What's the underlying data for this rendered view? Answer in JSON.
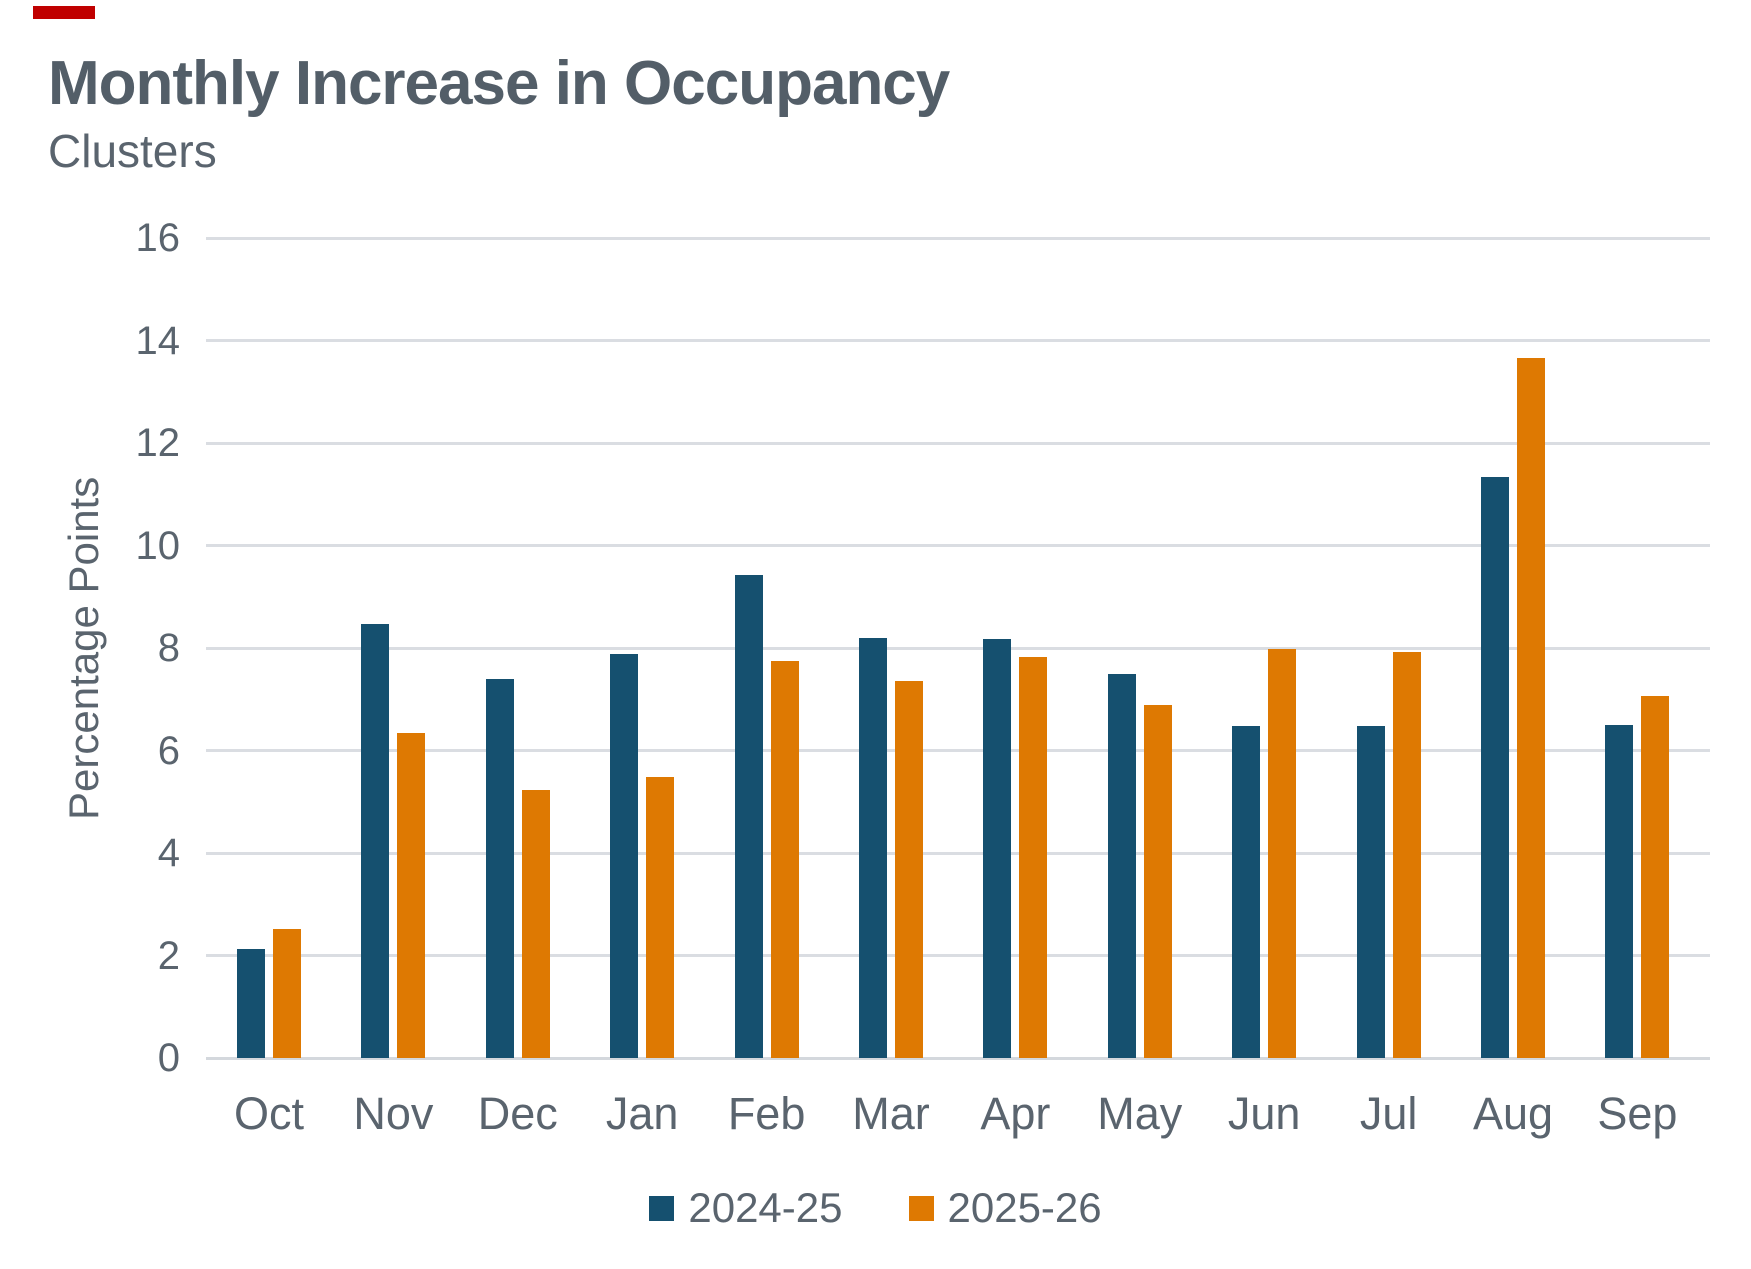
{
  "page": {
    "accent_color": "#C00000"
  },
  "chart_data": {
    "type": "bar",
    "title": "Monthly Increase in Occupancy",
    "subtitle": "Clusters",
    "ylabel": "Percentage Points",
    "xlabel": "",
    "ylim": [
      0,
      16
    ],
    "ytick_step": 2,
    "grid": true,
    "legend_position": "bottom",
    "categories": [
      "Oct",
      "Nov",
      "Dec",
      "Jan",
      "Feb",
      "Mar",
      "Apr",
      "May",
      "Jun",
      "Jul",
      "Aug",
      "Sep"
    ],
    "series": [
      {
        "name": "2024-25",
        "color": "#15506F",
        "values": [
          2.13,
          8.47,
          7.4,
          7.88,
          9.42,
          8.2,
          8.18,
          7.49,
          6.48,
          6.48,
          11.34,
          6.5
        ]
      },
      {
        "name": "2025-26",
        "color": "#DE7902",
        "values": [
          2.52,
          6.35,
          5.22,
          5.48,
          7.75,
          7.35,
          7.82,
          6.88,
          7.99,
          7.92,
          13.65,
          7.06
        ]
      }
    ]
  }
}
